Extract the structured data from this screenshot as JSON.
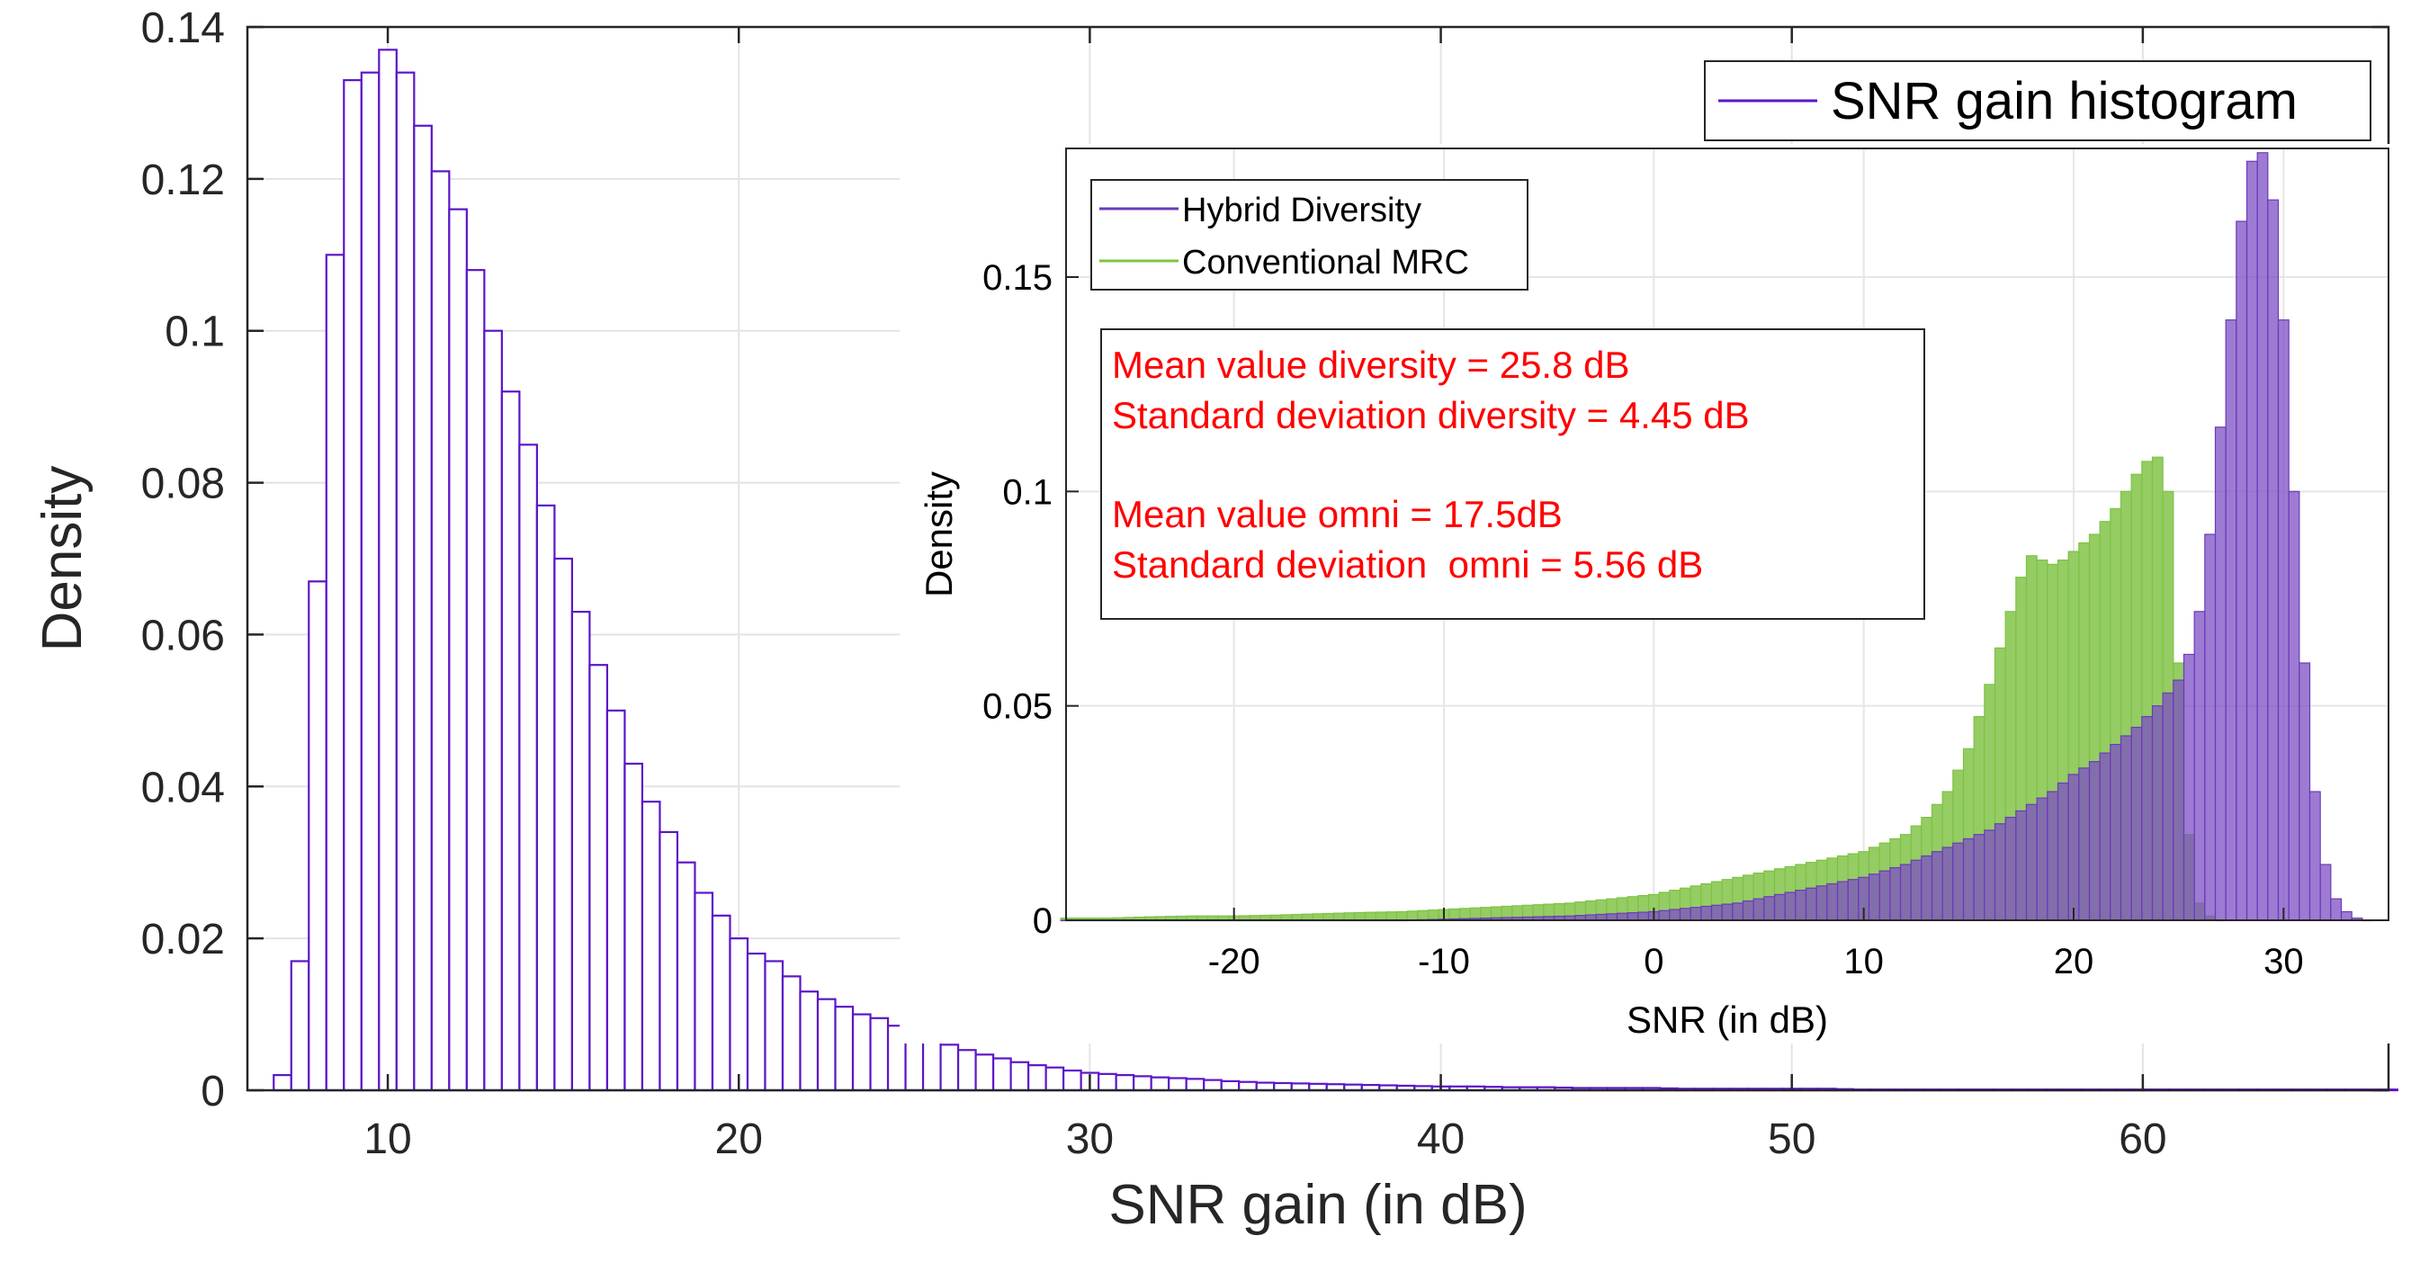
{
  "chart_data": [
    {
      "type": "histogram",
      "xlabel": "SNR gain (in dB)",
      "ylabel": "Density",
      "xlim": [
        6,
        67
      ],
      "ylim": [
        0,
        0.14
      ],
      "x_ticks": [
        10,
        20,
        30,
        40,
        50,
        60
      ],
      "x_tick_labels": [
        "10",
        "20",
        "30",
        "40",
        "50",
        "60"
      ],
      "y_ticks": [
        0,
        0.02,
        0.04,
        0.06,
        0.08,
        0.1,
        0.12,
        0.14
      ],
      "y_tick_labels": [
        "0",
        "0.02",
        "0.04",
        "0.06",
        "0.08",
        "0.1",
        "0.12",
        "0.14"
      ],
      "grid": true,
      "legend": {
        "position": "top-right",
        "entries": [
          "SNR gain histogram"
        ]
      },
      "series": [
        {
          "name": "SNR gain histogram",
          "color": "#5b16c8",
          "bin_width": 0.5,
          "x": [
            7,
            7.5,
            8,
            8.5,
            9,
            9.5,
            10,
            10.5,
            11,
            11.5,
            12,
            12.5,
            13,
            13.5,
            14,
            14.5,
            15,
            15.5,
            16,
            16.5,
            17,
            17.5,
            18,
            18.5,
            19,
            19.5,
            20,
            20.5,
            21,
            21.5,
            22,
            22.5,
            23,
            23.5,
            24,
            24.5,
            25,
            25.5,
            26,
            26.5,
            27,
            27.5,
            28,
            28.5,
            29,
            29.5,
            30,
            31,
            32,
            33,
            34,
            35,
            36,
            37,
            38,
            39,
            40,
            41,
            42,
            43,
            44,
            45,
            46,
            47,
            48,
            49,
            50,
            51,
            52,
            53,
            54,
            55,
            56,
            57,
            58,
            59,
            60,
            61,
            62,
            63,
            64,
            65,
            66,
            67
          ],
          "values": [
            0.002,
            0.017,
            0.067,
            0.11,
            0.133,
            0.134,
            0.137,
            0.134,
            0.127,
            0.121,
            0.116,
            0.108,
            0.1,
            0.092,
            0.085,
            0.077,
            0.07,
            0.063,
            0.056,
            0.05,
            0.043,
            0.038,
            0.034,
            0.03,
            0.026,
            0.023,
            0.02,
            0.018,
            0.017,
            0.015,
            0.013,
            0.012,
            0.011,
            0.01,
            0.0095,
            0.0085,
            0.0075,
            0.0068,
            0.006,
            0.0053,
            0.0047,
            0.0042,
            0.0037,
            0.0033,
            0.003,
            0.0026,
            0.0023,
            0.002,
            0.0017,
            0.0015,
            0.0012,
            0.001,
            0.0009,
            0.0008,
            0.0007,
            0.0006,
            0.0005,
            0.0005,
            0.0004,
            0.0004,
            0.0003,
            0.0003,
            0.0003,
            0.0002,
            0.0002,
            0.0002,
            0.0002,
            0.0002,
            0.0001,
            0.0001,
            0.0001,
            0.0001,
            0.0001,
            0.0001,
            0.0001,
            0.0001,
            0.0001,
            0.0001,
            0.0001,
            0.0001,
            0.0001,
            0.0001,
            0.0001,
            0.0001
          ]
        }
      ]
    },
    {
      "type": "histogram",
      "role": "inset",
      "xlabel": "SNR (in dB)",
      "ylabel": "Density",
      "xlim": [
        -28,
        35
      ],
      "ylim": [
        0,
        0.18
      ],
      "x_ticks": [
        -20,
        -10,
        0,
        10,
        20,
        30
      ],
      "x_tick_labels": [
        "-20",
        "-10",
        "0",
        "10",
        "20",
        "30"
      ],
      "y_ticks": [
        0,
        0.05,
        0.1,
        0.15
      ],
      "y_tick_labels": [
        "0",
        "0.05",
        "0.1",
        "0.15"
      ],
      "grid": true,
      "legend": {
        "position": "top-left",
        "entries": [
          "Hybrid Diversity",
          "Conventional MRC"
        ]
      },
      "annotations": [
        "Mean value diversity = 25.8 dB",
        "Standard deviation diversity = 4.45 dB",
        "Mean value omni = 17.5dB",
        "Standard deviation  omni = 5.56 dB"
      ],
      "annotation_color": "#ff0000",
      "series": [
        {
          "name": "Hybrid Diversity",
          "color": "#6a3bb8",
          "bin_width": 0.5,
          "x": [
            -28,
            -24,
            -20,
            -16,
            -12,
            -8,
            -4,
            0,
            2,
            4,
            6,
            8,
            10,
            12,
            14,
            15,
            16,
            17,
            18,
            19,
            20,
            21,
            22,
            23,
            24,
            25,
            25.5,
            26,
            26.5,
            27,
            27.5,
            28,
            28.5,
            29,
            29.5,
            30,
            30.5,
            31,
            31.5,
            32,
            32.5,
            33,
            33.5,
            34
          ],
          "values": [
            0,
            0,
            0,
            0,
            0,
            0.0005,
            0.001,
            0.002,
            0.003,
            0.004,
            0.006,
            0.008,
            0.01,
            0.013,
            0.017,
            0.019,
            0.021,
            0.024,
            0.027,
            0.03,
            0.034,
            0.037,
            0.041,
            0.045,
            0.05,
            0.056,
            0.062,
            0.072,
            0.09,
            0.115,
            0.14,
            0.163,
            0.177,
            0.179,
            0.168,
            0.14,
            0.1,
            0.06,
            0.03,
            0.013,
            0.005,
            0.002,
            0.0005,
            0
          ]
        },
        {
          "name": "Conventional MRC",
          "color": "#7cc442",
          "bin_width": 0.5,
          "x": [
            -28,
            -26,
            -24,
            -22,
            -20,
            -18,
            -16,
            -14,
            -12,
            -10,
            -8,
            -6,
            -4,
            -2,
            0,
            1,
            2,
            3,
            4,
            5,
            6,
            7,
            8,
            9,
            10,
            11,
            12,
            13,
            14,
            15,
            16,
            17,
            17.5,
            18,
            18.5,
            19,
            19.5,
            20,
            20.5,
            21,
            21.5,
            22,
            22.5,
            23,
            23.5,
            24,
            24.5,
            25,
            25.5,
            26,
            26.5,
            27
          ],
          "values": [
            0.0005,
            0.0005,
            0.0008,
            0.001,
            0.001,
            0.0012,
            0.0015,
            0.0018,
            0.002,
            0.0025,
            0.003,
            0.0035,
            0.004,
            0.005,
            0.006,
            0.007,
            0.008,
            0.009,
            0.01,
            0.011,
            0.012,
            0.013,
            0.014,
            0.015,
            0.016,
            0.018,
            0.02,
            0.024,
            0.03,
            0.04,
            0.055,
            0.072,
            0.08,
            0.085,
            0.084,
            0.083,
            0.084,
            0.086,
            0.088,
            0.09,
            0.093,
            0.096,
            0.1,
            0.104,
            0.107,
            0.108,
            0.1,
            0.06,
            0.02,
            0.004,
            0.001,
            0
          ]
        }
      ]
    }
  ]
}
